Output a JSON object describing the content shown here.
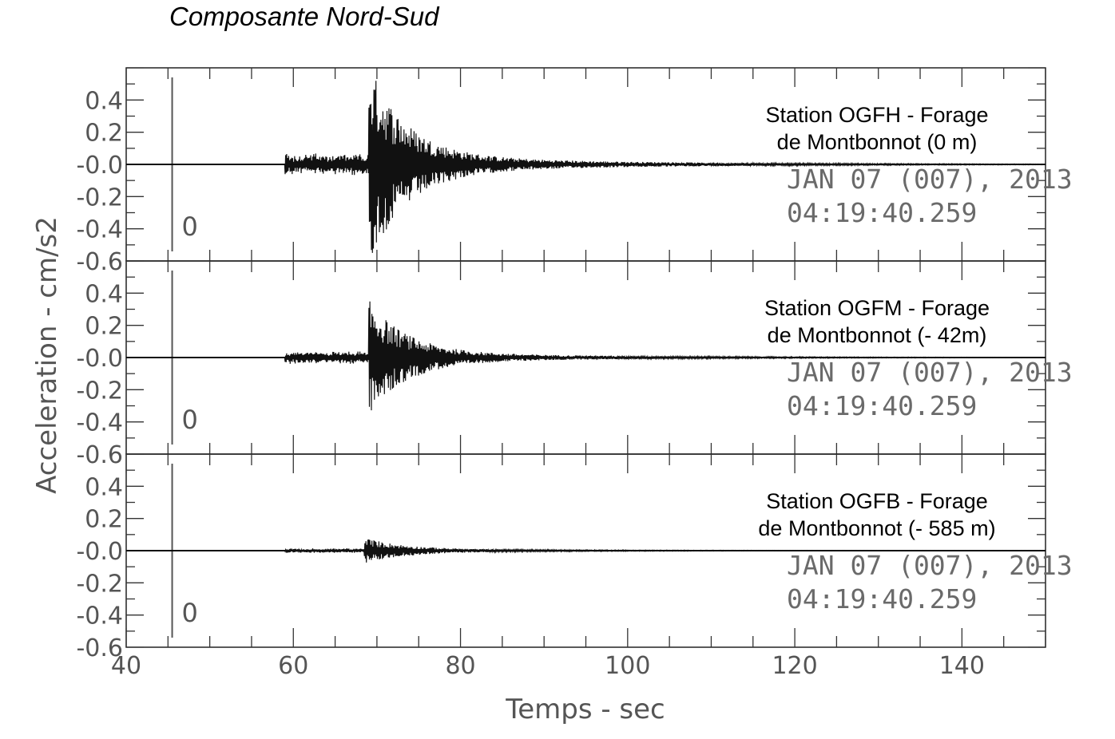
{
  "chart_data": {
    "type": "line",
    "title": "Composante Nord-Sud",
    "xlabel": "Temps - sec",
    "ylabel": "Acceleration - cm/s2",
    "xlim": [
      40,
      150
    ],
    "ylim": [
      -0.6,
      0.6
    ],
    "x_ticks": [
      40,
      60,
      80,
      100,
      120,
      140
    ],
    "x_tick_labels": [
      "40",
      "60",
      "80",
      "100",
      "120",
      "140"
    ],
    "y_ticks": [
      0.4,
      0.2,
      0.0,
      -0.2,
      -0.4,
      -0.6
    ],
    "y_tick_labels": [
      "0.4",
      "0.2",
      "-0.0",
      "-0.2",
      "-0.4",
      "-0.6"
    ],
    "grid": false,
    "panels": [
      {
        "station_line1": "Station OGFH - Forage",
        "station_line2": "de Montbonnot  (0 m)",
        "date": "JAN 07 (007), 2013",
        "time": "04:19:40.259",
        "marker_label": "0",
        "marker_x": 45.5,
        "p_wave_onset": 59,
        "s_wave_onset": 69,
        "p_amplitude": 0.07,
        "s_peak_amplitude": 0.58,
        "trace_color": "#111111"
      },
      {
        "station_line1": "Station OGFM - Forage",
        "station_line2": "de Montbonnot  (- 42m)",
        "date": "JAN 07 (007), 2013",
        "time": "04:19:40.259",
        "marker_label": "0",
        "marker_x": 45.5,
        "p_wave_onset": 59,
        "s_wave_onset": 69,
        "p_amplitude": 0.04,
        "s_peak_amplitude": 0.33,
        "trace_color": "#111111"
      },
      {
        "station_line1": "Station OGFB - Forage",
        "station_line2": "de Montbonnot  (- 585 m)",
        "date": "JAN 07 (007), 2013",
        "time": "04:19:40.259",
        "marker_label": "0",
        "marker_x": 45.5,
        "p_wave_onset": 59,
        "s_wave_onset": 68.5,
        "p_amplitude": 0.015,
        "s_peak_amplitude": 0.07,
        "trace_color": "#111111"
      }
    ]
  }
}
